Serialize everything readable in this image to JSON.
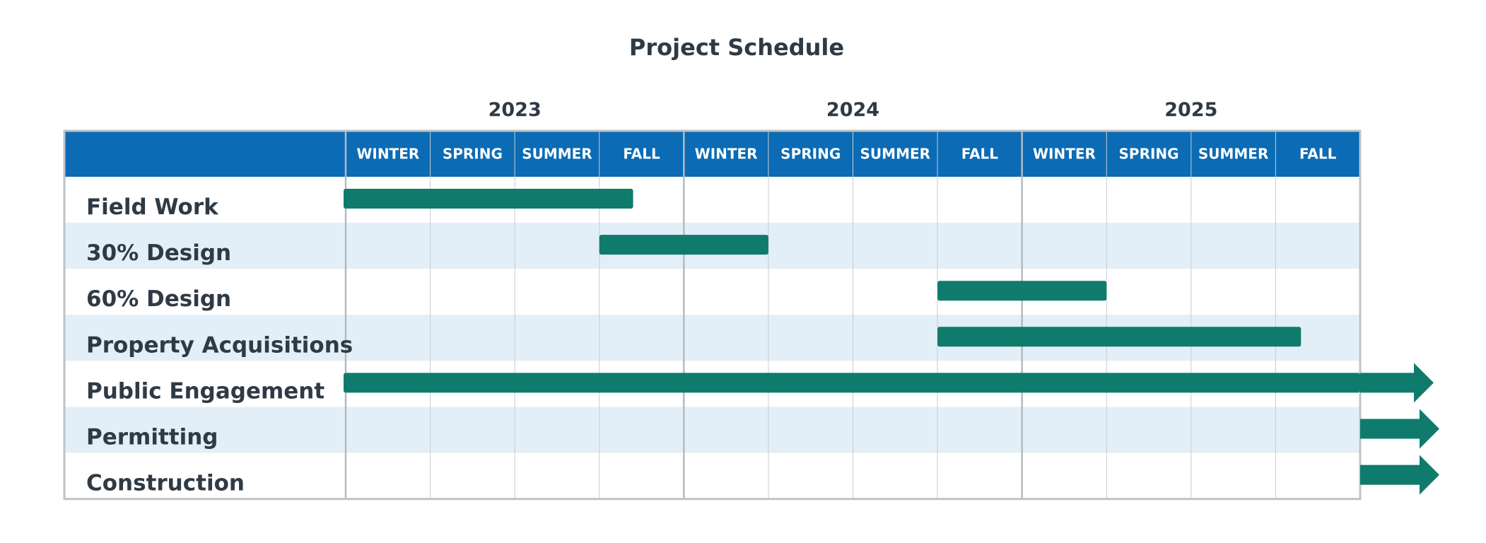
{
  "chart_data": {
    "type": "gantt",
    "title": "Project Schedule",
    "years": [
      "2023",
      "2024",
      "2025"
    ],
    "seasons": [
      "WINTER",
      "SPRING",
      "SUMMER",
      "FALL",
      "WINTER",
      "SPRING",
      "SUMMER",
      "FALL",
      "WINTER",
      "SPRING",
      "SUMMER",
      "FALL"
    ],
    "tasks": [
      {
        "name": "Field Work",
        "start": 0,
        "end": 3.4,
        "continues": false
      },
      {
        "name": "30% Design",
        "start": 3,
        "end": 5,
        "continues": false
      },
      {
        "name": "60% Design",
        "start": 7,
        "end": 9,
        "continues": false
      },
      {
        "name": "Property Acquisitions",
        "start": 7,
        "end": 11.3,
        "continues": false
      },
      {
        "name": "Public Engagement",
        "start": 0,
        "end": 12,
        "continues": true
      },
      {
        "name": "Permitting",
        "start": 12,
        "end": 12,
        "continues": true
      },
      {
        "name": "Construction",
        "start": 12,
        "end": 12,
        "continues": true
      }
    ],
    "colors": {
      "header": "#0b6bb5",
      "bar": "#0f7b6c",
      "band": "#e3eff8",
      "grid": "#c8ccd0",
      "text": "#2f3a45"
    }
  }
}
